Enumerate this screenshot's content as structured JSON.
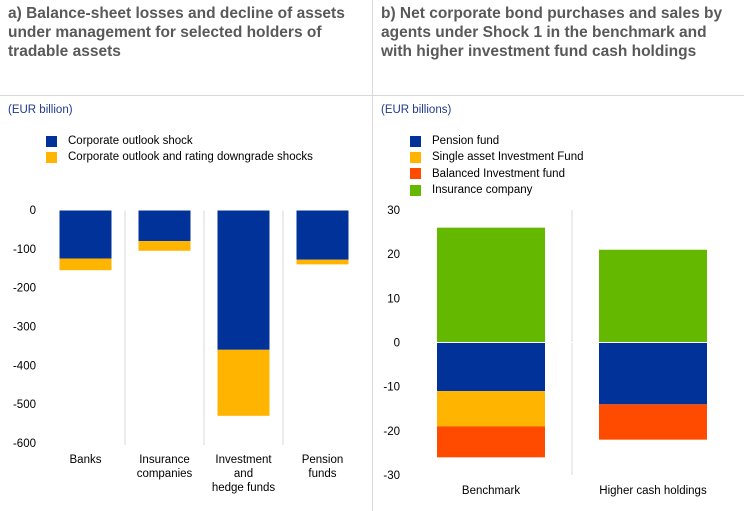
{
  "colors": {
    "blue": "#003299",
    "yellow": "#FFB400",
    "orange": "#FF4B00",
    "green": "#65B800",
    "title": "#595959",
    "unit": "#1f3b8a",
    "grid": "#d9d9d9"
  },
  "panel_a": {
    "title": "a) Balance-sheet losses and decline of assets under management for selected holders of tradable assets",
    "unit": "(EUR billion)",
    "legend": [
      {
        "label": "Corporate outlook shock",
        "color": "#003299"
      },
      {
        "label": "Corporate outlook and rating downgrade shocks",
        "color": "#FFB400"
      }
    ]
  },
  "panel_b": {
    "title": "b) Net corporate bond purchases and sales by agents under Shock 1 in the benchmark and with higher investment fund cash holdings",
    "unit": "(EUR billions)",
    "legend": [
      {
        "label": "Pension fund",
        "color": "#003299"
      },
      {
        "label": "Single asset Investment Fund",
        "color": "#FFB400"
      },
      {
        "label": "Balanced Investment fund",
        "color": "#FF4B00"
      },
      {
        "label": "Insurance company",
        "color": "#65B800"
      }
    ]
  },
  "chart_data": [
    {
      "type": "bar",
      "stacked": true,
      "categories": [
        [
          "Banks"
        ],
        [
          "Insurance",
          "companies"
        ],
        [
          "Investment",
          "and",
          "hedge funds"
        ],
        [
          "Pension",
          "funds"
        ]
      ],
      "series": [
        {
          "name": "Corporate outlook shock",
          "color": "#003299",
          "values": [
            -125,
            -80,
            -360,
            -128
          ]
        },
        {
          "name": "Corporate outlook and rating downgrade shocks",
          "color": "#FFB400",
          "values": [
            -30,
            -25,
            -170,
            -12
          ]
        }
      ],
      "ylim": [
        -600,
        0
      ],
      "yticks": [
        0,
        -100,
        -200,
        -300,
        -400,
        -500,
        -600
      ],
      "ytick_labels": [
        "0",
        "-100",
        "-200",
        "-300",
        "-400",
        "-500",
        "-600"
      ],
      "grid": "vertical separators between categories"
    },
    {
      "type": "bar",
      "stacked": true,
      "categories": [
        [
          "Benchmark"
        ],
        [
          "Higher cash holdings"
        ]
      ],
      "series": [
        {
          "name": "Pension fund",
          "color": "#003299",
          "values": [
            -11,
            -14
          ]
        },
        {
          "name": "Single asset Investment Fund",
          "color": "#FFB400",
          "values": [
            -8,
            0
          ]
        },
        {
          "name": "Balanced Investment fund",
          "color": "#FF4B00",
          "values": [
            -7,
            -8
          ]
        },
        {
          "name": "Insurance company",
          "color": "#65B800",
          "values": [
            26,
            21
          ]
        }
      ],
      "ylim": [
        -30,
        30
      ],
      "yticks": [
        30,
        20,
        10,
        0,
        -10,
        -20,
        -30
      ],
      "ytick_labels": [
        "30",
        "20",
        "10",
        "0",
        "-10",
        "-20",
        "-30"
      ],
      "grid": "vertical separators between categories"
    }
  ]
}
